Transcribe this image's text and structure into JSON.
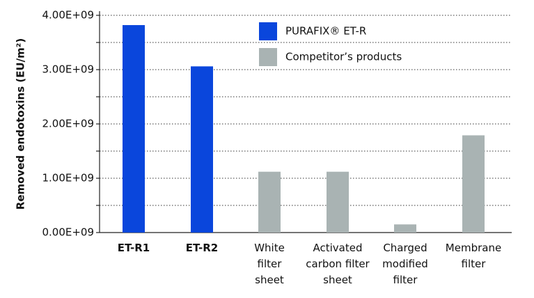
{
  "chart_data": {
    "type": "bar",
    "y_label": "Removed endotoxins (EU/m²)",
    "categories": [
      "ET-R1",
      "ET-R2",
      "White\nfilter\nsheet",
      "Activated\ncarbon filter\nsheet",
      "Charged\nmodified\nfilter",
      "Membrane\nfilter"
    ],
    "series": [
      {
        "name": "PURAFIX® ET-R",
        "color": "#0a46dc",
        "values": [
          3820000000,
          3060000000,
          null,
          null,
          null,
          null
        ]
      },
      {
        "name": "Competitor’s products",
        "color": "#a9b3b3",
        "values": [
          null,
          null,
          1120000000,
          1120000000,
          150000000,
          1790000000
        ]
      }
    ],
    "ylim": [
      0,
      4000000000
    ],
    "yticks": [
      {
        "value": 0,
        "label": "0.00E+09"
      },
      {
        "value": 1000000000,
        "label": "1.00E+09"
      },
      {
        "value": 2000000000,
        "label": "2.00E+09"
      },
      {
        "value": 3000000000,
        "label": "3.00E+09"
      },
      {
        "value": 4000000000,
        "label": "4.00E+09"
      }
    ],
    "minor_yticks": [
      500000000,
      1500000000,
      2500000000,
      3500000000
    ],
    "grid": true
  }
}
